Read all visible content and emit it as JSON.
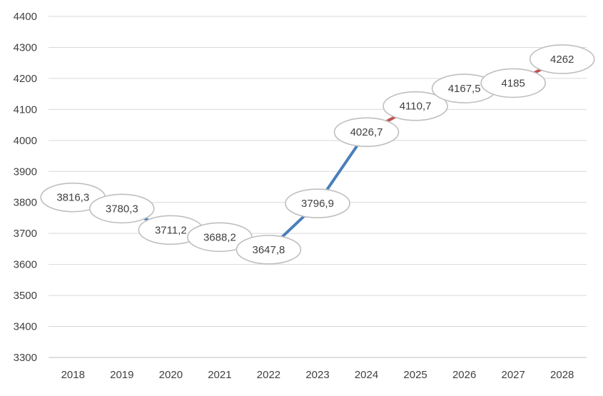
{
  "chart_data": {
    "type": "line",
    "title": "",
    "xlabel": "",
    "ylabel": "",
    "x": [
      "2018",
      "2019",
      "2020",
      "2021",
      "2022",
      "2023",
      "2024",
      "2025",
      "2026",
      "2027",
      "2028"
    ],
    "values": [
      3816.3,
      3780.3,
      3711.2,
      3688.2,
      3647.8,
      3796.9,
      4026.7,
      4110.7,
      4167.5,
      4185,
      4262
    ],
    "data_labels": [
      "3816,3",
      "3780,3",
      "3711,2",
      "3688,2",
      "3647,8",
      "3796,9",
      "4026,7",
      "4110,7",
      "4167,5",
      "4185",
      "4262"
    ],
    "y_ticks": [
      "3300",
      "3400",
      "3500",
      "3600",
      "3700",
      "3800",
      "3900",
      "4000",
      "4100",
      "4200",
      "4300",
      "4400"
    ],
    "ylim": [
      3300,
      4400
    ],
    "grid": true,
    "legend": "none",
    "segments": [
      {
        "from_index": 0,
        "to_index": 6,
        "color": "#4a7ebb"
      },
      {
        "from_index": 6,
        "to_index": 10,
        "color": "#c0504d"
      }
    ]
  }
}
